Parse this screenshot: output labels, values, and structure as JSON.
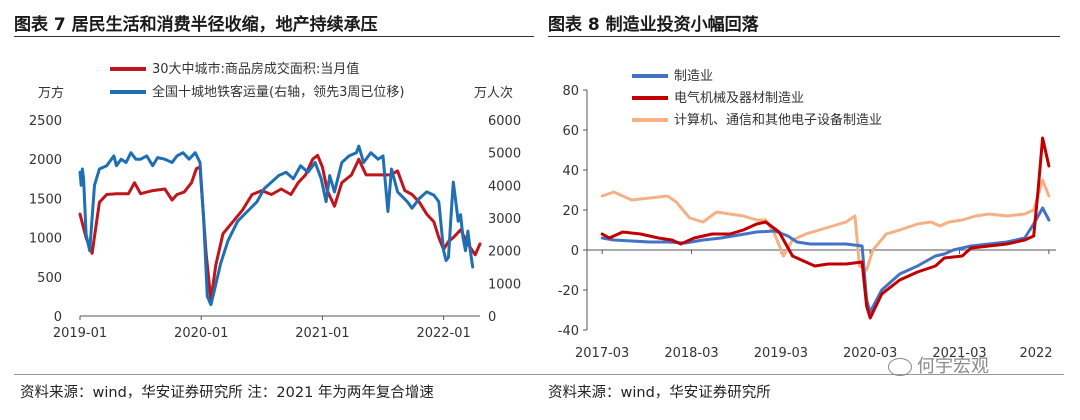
{
  "left_panel": {
    "title": "图表 7  居民生活和消费半径收缩，地产持续承压",
    "source": "资料来源：wind，华安证券研究所  注：2021 年为两年复合增速"
  },
  "right_panel": {
    "title": "图表 8  制造业投资小幅回落",
    "source": "资料来源：wind，华安证券研究所"
  },
  "watermark": {
    "text": "何宇宏观",
    "icon": "wechat-icon"
  },
  "chart_data": [
    {
      "type": "line",
      "left_unit": "万方",
      "right_unit": "万人次",
      "ylim_left": [
        0,
        2500
      ],
      "ylim_right": [
        0,
        6000
      ],
      "left_ticks": [
        0,
        500,
        1000,
        1500,
        2000,
        2500
      ],
      "right_ticks": [
        0,
        1000,
        2000,
        3000,
        4000,
        5000,
        6000
      ],
      "xlim": [
        2019.0,
        2022.3
      ],
      "x_ticks": [
        {
          "t": 2019.0,
          "label": "2019-01"
        },
        {
          "t": 2020.0,
          "label": "2020-01"
        },
        {
          "t": 2021.0,
          "label": "2021-01"
        },
        {
          "t": 2022.0,
          "label": "2022-01"
        }
      ],
      "series": [
        {
          "name": "30大中城市:商品房成交面积:当月值",
          "axis": "left",
          "color": "#c0151b",
          "points": [
            [
              2019.0,
              1300
            ],
            [
              2019.05,
              1000
            ],
            [
              2019.1,
              800
            ],
            [
              2019.16,
              1450
            ],
            [
              2019.22,
              1550
            ],
            [
              2019.3,
              1560
            ],
            [
              2019.4,
              1560
            ],
            [
              2019.45,
              1700
            ],
            [
              2019.5,
              1560
            ],
            [
              2019.6,
              1600
            ],
            [
              2019.7,
              1620
            ],
            [
              2019.76,
              1480
            ],
            [
              2019.8,
              1550
            ],
            [
              2019.86,
              1580
            ],
            [
              2019.92,
              1700
            ],
            [
              2019.96,
              1880
            ],
            [
              2019.99,
              1900
            ],
            [
              2020.04,
              800
            ],
            [
              2020.08,
              200
            ],
            [
              2020.12,
              650
            ],
            [
              2020.18,
              1050
            ],
            [
              2020.26,
              1200
            ],
            [
              2020.34,
              1350
            ],
            [
              2020.42,
              1550
            ],
            [
              2020.5,
              1600
            ],
            [
              2020.58,
              1550
            ],
            [
              2020.66,
              1620
            ],
            [
              2020.74,
              1550
            ],
            [
              2020.8,
              1700
            ],
            [
              2020.86,
              1800
            ],
            [
              2020.92,
              2000
            ],
            [
              2020.96,
              2050
            ],
            [
              2021.0,
              1900
            ],
            [
              2021.04,
              1600
            ],
            [
              2021.1,
              1400
            ],
            [
              2021.16,
              1700
            ],
            [
              2021.24,
              1800
            ],
            [
              2021.3,
              2000
            ],
            [
              2021.36,
              1800
            ],
            [
              2021.46,
              1800
            ],
            [
              2021.56,
              1800
            ],
            [
              2021.62,
              1850
            ],
            [
              2021.68,
              1600
            ],
            [
              2021.74,
              1550
            ],
            [
              2021.8,
              1450
            ],
            [
              2021.86,
              1300
            ],
            [
              2021.92,
              1200
            ],
            [
              2021.96,
              1000
            ],
            [
              2022.0,
              850
            ],
            [
              2022.04,
              950
            ],
            [
              2022.08,
              1000
            ],
            [
              2022.14,
              1100
            ],
            [
              2022.2,
              920
            ],
            [
              2022.26,
              780
            ],
            [
              2022.3,
              920
            ]
          ]
        },
        {
          "name": "全国十城地铁客运量(右轴，领先3周已位移)",
          "axis": "right",
          "color": "#1f6fb5",
          "points": [
            [
              2019.0,
              4400
            ],
            [
              2019.01,
              4000
            ],
            [
              2019.02,
              4500
            ],
            [
              2019.03,
              4200
            ],
            [
              2019.05,
              2500
            ],
            [
              2019.08,
              2000
            ],
            [
              2019.12,
              4000
            ],
            [
              2019.16,
              4500
            ],
            [
              2019.22,
              4600
            ],
            [
              2019.28,
              4900
            ],
            [
              2019.3,
              4600
            ],
            [
              2019.34,
              4800
            ],
            [
              2019.38,
              4700
            ],
            [
              2019.42,
              5000
            ],
            [
              2019.46,
              4800
            ],
            [
              2019.5,
              4800
            ],
            [
              2019.55,
              4900
            ],
            [
              2019.6,
              4600
            ],
            [
              2019.64,
              4850
            ],
            [
              2019.7,
              4800
            ],
            [
              2019.76,
              4700
            ],
            [
              2019.8,
              4900
            ],
            [
              2019.85,
              5000
            ],
            [
              2019.9,
              4800
            ],
            [
              2019.95,
              5000
            ],
            [
              2019.99,
              4700
            ],
            [
              2020.02,
              3000
            ],
            [
              2020.05,
              600
            ],
            [
              2020.08,
              350
            ],
            [
              2020.11,
              800
            ],
            [
              2020.16,
              1600
            ],
            [
              2020.22,
              2300
            ],
            [
              2020.3,
              2900
            ],
            [
              2020.38,
              3200
            ],
            [
              2020.46,
              3500
            ],
            [
              2020.52,
              3900
            ],
            [
              2020.58,
              4100
            ],
            [
              2020.64,
              4300
            ],
            [
              2020.7,
              4400
            ],
            [
              2020.76,
              4200
            ],
            [
              2020.82,
              4600
            ],
            [
              2020.88,
              4400
            ],
            [
              2020.94,
              4700
            ],
            [
              2020.99,
              4200
            ],
            [
              2021.03,
              3500
            ],
            [
              2021.06,
              4300
            ],
            [
              2021.1,
              3800
            ],
            [
              2021.16,
              4700
            ],
            [
              2021.22,
              4900
            ],
            [
              2021.28,
              5000
            ],
            [
              2021.3,
              5200
            ],
            [
              2021.34,
              4700
            ],
            [
              2021.4,
              5000
            ],
            [
              2021.46,
              4800
            ],
            [
              2021.5,
              4900
            ],
            [
              2021.54,
              3200
            ],
            [
              2021.57,
              4500
            ],
            [
              2021.62,
              3800
            ],
            [
              2021.7,
              3500
            ],
            [
              2021.74,
              3300
            ],
            [
              2021.8,
              3600
            ],
            [
              2021.86,
              3800
            ],
            [
              2021.92,
              3700
            ],
            [
              2021.96,
              3500
            ],
            [
              2022.0,
              2000
            ],
            [
              2022.02,
              1700
            ],
            [
              2022.04,
              1800
            ],
            [
              2022.06,
              3000
            ],
            [
              2022.08,
              4100
            ],
            [
              2022.1,
              3500
            ],
            [
              2022.12,
              2900
            ],
            [
              2022.14,
              3100
            ],
            [
              2022.16,
              2400
            ],
            [
              2022.18,
              2000
            ],
            [
              2022.2,
              2600
            ],
            [
              2022.22,
              2000
            ],
            [
              2022.24,
              1500
            ]
          ]
        }
      ]
    },
    {
      "type": "line",
      "ylim": [
        -40,
        80
      ],
      "y_ticks": [
        -40,
        -20,
        0,
        20,
        40,
        60,
        80
      ],
      "xlim": [
        2017.0,
        2022.25
      ],
      "x_ticks": [
        {
          "t": 2017.17,
          "label": "2017-03"
        },
        {
          "t": 2018.17,
          "label": "2018-03"
        },
        {
          "t": 2019.17,
          "label": "2019-03"
        },
        {
          "t": 2020.17,
          "label": "2020-03"
        },
        {
          "t": 2021.17,
          "label": "2021-03"
        },
        {
          "t": 2022.17,
          "label": "2022"
        }
      ],
      "series": [
        {
          "name": "制造业",
          "color": "#4472c4",
          "points": [
            [
              2017.17,
              6
            ],
            [
              2017.3,
              5
            ],
            [
              2017.5,
              4.5
            ],
            [
              2017.7,
              4
            ],
            [
              2017.9,
              4
            ],
            [
              2018.1,
              3.5
            ],
            [
              2018.3,
              5
            ],
            [
              2018.5,
              6
            ],
            [
              2018.7,
              7.5
            ],
            [
              2018.9,
              9
            ],
            [
              2019.1,
              9.5
            ],
            [
              2019.25,
              7
            ],
            [
              2019.35,
              4
            ],
            [
              2019.5,
              3
            ],
            [
              2019.7,
              3
            ],
            [
              2019.9,
              3
            ],
            [
              2020.08,
              2
            ],
            [
              2020.13,
              -25
            ],
            [
              2020.17,
              -31
            ],
            [
              2020.3,
              -20
            ],
            [
              2020.5,
              -12
            ],
            [
              2020.7,
              -8
            ],
            [
              2020.9,
              -3
            ],
            [
              2021.0,
              -2
            ],
            [
              2021.1,
              0
            ],
            [
              2021.3,
              2
            ],
            [
              2021.5,
              3
            ],
            [
              2021.7,
              4
            ],
            [
              2021.9,
              6
            ],
            [
              2022.0,
              13
            ],
            [
              2022.1,
              21
            ],
            [
              2022.17,
              15
            ]
          ]
        },
        {
          "name": "电气机械及器材制造业",
          "color": "#c00000",
          "points": [
            [
              2017.17,
              8
            ],
            [
              2017.25,
              6
            ],
            [
              2017.4,
              9
            ],
            [
              2017.6,
              8
            ],
            [
              2017.8,
              6
            ],
            [
              2017.95,
              5
            ],
            [
              2018.05,
              3
            ],
            [
              2018.2,
              6
            ],
            [
              2018.4,
              8
            ],
            [
              2018.6,
              8
            ],
            [
              2018.75,
              10
            ],
            [
              2018.9,
              13
            ],
            [
              2019.0,
              14
            ],
            [
              2019.15,
              9
            ],
            [
              2019.3,
              -3
            ],
            [
              2019.45,
              -6
            ],
            [
              2019.55,
              -8
            ],
            [
              2019.7,
              -7
            ],
            [
              2019.9,
              -7
            ],
            [
              2020.08,
              -6
            ],
            [
              2020.13,
              -28
            ],
            [
              2020.17,
              -34
            ],
            [
              2020.3,
              -22
            ],
            [
              2020.5,
              -15
            ],
            [
              2020.7,
              -11
            ],
            [
              2020.9,
              -8
            ],
            [
              2021.0,
              -4
            ],
            [
              2021.2,
              -3
            ],
            [
              2021.3,
              1
            ],
            [
              2021.5,
              2
            ],
            [
              2021.7,
              3
            ],
            [
              2021.9,
              5
            ],
            [
              2022.0,
              7
            ],
            [
              2022.05,
              30
            ],
            [
              2022.1,
              56
            ],
            [
              2022.17,
              42
            ]
          ]
        },
        {
          "name": "计算机、通信和其他电子设备制造业",
          "color": "#f4b183",
          "points": [
            [
              2017.17,
              27
            ],
            [
              2017.3,
              29
            ],
            [
              2017.5,
              25
            ],
            [
              2017.7,
              26
            ],
            [
              2017.9,
              27
            ],
            [
              2018.0,
              24
            ],
            [
              2018.15,
              16
            ],
            [
              2018.3,
              14
            ],
            [
              2018.45,
              19
            ],
            [
              2018.6,
              18
            ],
            [
              2018.75,
              17
            ],
            [
              2018.9,
              15
            ],
            [
              2019.0,
              15
            ],
            [
              2019.1,
              8
            ],
            [
              2019.2,
              -3
            ],
            [
              2019.3,
              5
            ],
            [
              2019.45,
              8
            ],
            [
              2019.6,
              10
            ],
            [
              2019.75,
              12
            ],
            [
              2019.9,
              14
            ],
            [
              2020.0,
              17
            ],
            [
              2020.05,
              -8
            ],
            [
              2020.13,
              -10
            ],
            [
              2020.2,
              0
            ],
            [
              2020.35,
              8
            ],
            [
              2020.5,
              10
            ],
            [
              2020.7,
              13
            ],
            [
              2020.85,
              14
            ],
            [
              2020.95,
              12
            ],
            [
              2021.05,
              14
            ],
            [
              2021.2,
              15
            ],
            [
              2021.35,
              17
            ],
            [
              2021.5,
              18
            ],
            [
              2021.7,
              17
            ],
            [
              2021.9,
              18
            ],
            [
              2022.0,
              20
            ],
            [
              2022.1,
              35
            ],
            [
              2022.17,
              27
            ]
          ]
        }
      ]
    }
  ]
}
